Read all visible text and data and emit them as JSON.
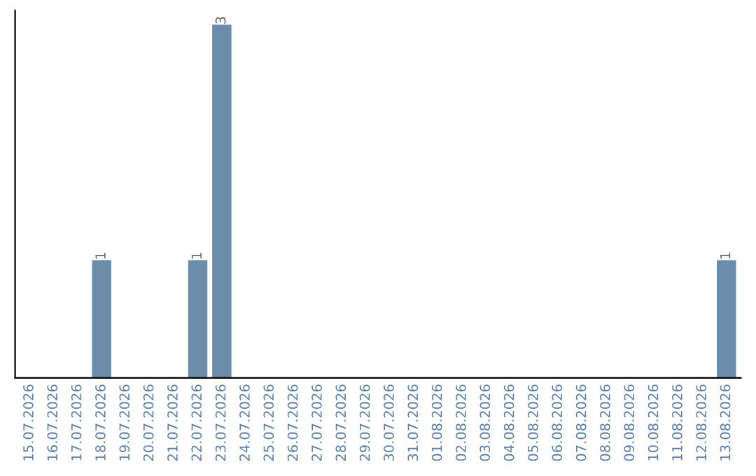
{
  "chart_data": {
    "type": "bar",
    "categories": [
      "15.07.2026",
      "16.07.2026",
      "17.07.2026",
      "18.07.2026",
      "19.07.2026",
      "20.07.2026",
      "21.07.2026",
      "22.07.2026",
      "23.07.2026",
      "24.07.2026",
      "25.07.2026",
      "26.07.2026",
      "27.07.2026",
      "28.07.2026",
      "29.07.2026",
      "30.07.2026",
      "31.07.2026",
      "01.08.2026",
      "02.08.2026",
      "03.08.2026",
      "04.08.2026",
      "05.08.2026",
      "06.08.2026",
      "07.08.2026",
      "08.08.2026",
      "09.08.2026",
      "10.08.2026",
      "11.08.2026",
      "12.08.2026",
      "13.08.2026"
    ],
    "values": [
      0,
      0,
      0,
      1,
      0,
      0,
      0,
      1,
      3,
      0,
      0,
      0,
      0,
      0,
      0,
      0,
      0,
      0,
      0,
      0,
      0,
      0,
      0,
      0,
      0,
      0,
      0,
      0,
      0,
      1
    ],
    "value_labels": [
      null,
      null,
      null,
      "1",
      null,
      null,
      null,
      "1",
      "3",
      null,
      null,
      null,
      null,
      null,
      null,
      null,
      null,
      null,
      null,
      null,
      null,
      null,
      null,
      null,
      null,
      null,
      null,
      null,
      null,
      "1"
    ],
    "color": "#6b8cab",
    "grid": false,
    "legend": false
  }
}
